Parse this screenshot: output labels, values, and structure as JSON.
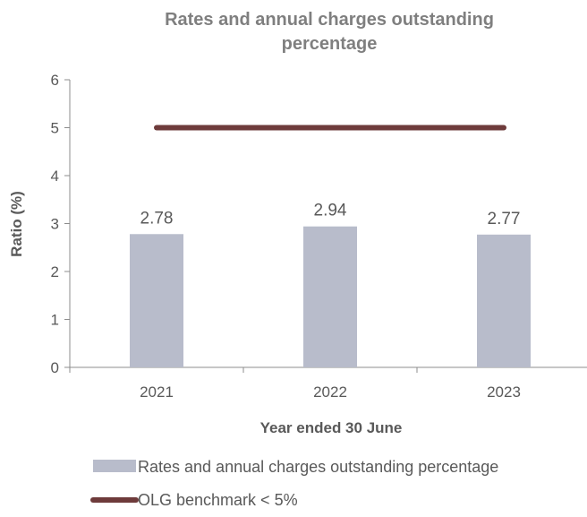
{
  "chart_data": {
    "type": "bar",
    "title_lines": [
      "Rates and annual charges outstanding",
      "percentage"
    ],
    "xlabel": "Year ended 30 June",
    "ylabel": "Ratio (%)",
    "categories": [
      "2021",
      "2022",
      "2023"
    ],
    "ylim": [
      0,
      6
    ],
    "yticks": [
      "0",
      "1",
      "2",
      "3",
      "4",
      "5",
      "6"
    ],
    "series": [
      {
        "name": "Rates and annual charges outstanding percentage",
        "type": "bar",
        "values": [
          2.78,
          2.94,
          2.77
        ],
        "labels": [
          "2.78",
          "2.94",
          "2.77"
        ],
        "color": "#b8bccb"
      },
      {
        "name": "OLG benchmark < 5%",
        "type": "line",
        "values": [
          5,
          5,
          5
        ],
        "color": "#6e3b3b"
      }
    ],
    "legend_position": "bottom",
    "grid": false
  }
}
